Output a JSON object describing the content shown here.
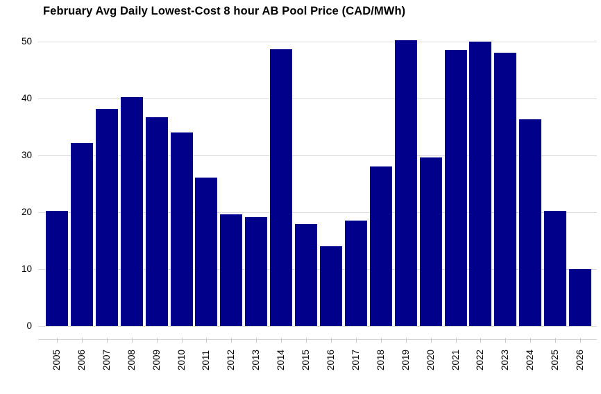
{
  "chart_data": {
    "type": "bar",
    "title": "February Avg Daily Lowest-Cost 8 hour AB Pool Price (CAD/MWh)",
    "xlabel": "",
    "ylabel": "",
    "categories": [
      "2005",
      "2006",
      "2007",
      "2008",
      "2009",
      "2010",
      "2011",
      "2012",
      "2013",
      "2014",
      "2015",
      "2016",
      "2017",
      "2018",
      "2019",
      "2020",
      "2021",
      "2022",
      "2023",
      "2024",
      "2025",
      "2026"
    ],
    "values": [
      20.3,
      32.2,
      38.2,
      40.2,
      36.7,
      34.0,
      26.1,
      19.6,
      19.2,
      48.6,
      17.9,
      14.0,
      18.5,
      28.1,
      50.2,
      29.6,
      48.5,
      50.0,
      48.0,
      36.3,
      20.2,
      10.0
    ],
    "ylim": [
      0,
      50
    ],
    "yticks": [
      0,
      10,
      20,
      30,
      40,
      50
    ],
    "grid": true,
    "legend_position": "none",
    "bar_color": "#00008B",
    "gridline_color": "#D9D9D9",
    "axis_line_color": "#D4D4D4",
    "tick_color": "#C8C8C8",
    "text_color": "#000000",
    "background_color": "#FFFFFF"
  }
}
